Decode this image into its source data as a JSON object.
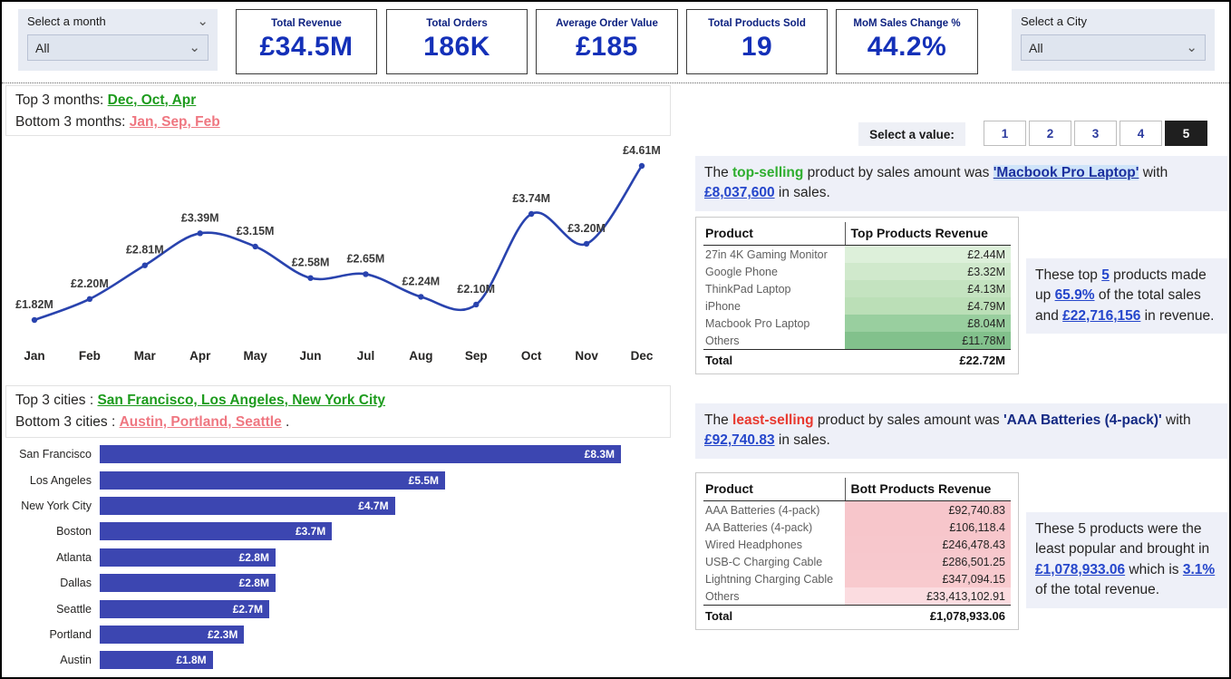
{
  "slicers": {
    "month": {
      "title": "Select a month",
      "value": "All"
    },
    "city": {
      "title": "Select a City",
      "value": "All"
    }
  },
  "kpis": [
    {
      "label": "Total Revenue",
      "value": "£34.5M"
    },
    {
      "label": "Total Orders",
      "value": "186K"
    },
    {
      "label": "Average Order Value",
      "value": "£185"
    },
    {
      "label": "Total Products Sold",
      "value": "19"
    },
    {
      "label": "MoM Sales Change %",
      "value": "44.2%"
    }
  ],
  "left": {
    "months": {
      "top_label": "Top 3 months: ",
      "top_value": "Dec, Oct, Apr",
      "bottom_label": "Bottom 3 months: ",
      "bottom_value": "Jan, Sep, Feb"
    },
    "cities": {
      "top_label": "Top 3 cities : ",
      "top_value": "San Francisco,  Los Angeles,  New York City",
      "bottom_label": "Bottom 3 cities : ",
      "bottom_value": "Austin,  Portland,  Seattle",
      "bottom_suffix": " ."
    }
  },
  "selector": {
    "label": "Select a value:",
    "options": [
      "1",
      "2",
      "3",
      "4",
      "5"
    ],
    "selected_index": 4
  },
  "top_section": {
    "sentence": {
      "t1": "The ",
      "highlight": "top-selling",
      "t2": " product by sales amount was ",
      "product": "'Macbook Pro Laptop'",
      "t3": " with ",
      "amount": "£8,037,600",
      "t4": " in sales."
    },
    "table": {
      "header_product": "Product",
      "header_revenue": "Top Products Revenue",
      "rows": [
        {
          "product": "27in 4K Gaming Monitor",
          "revenue": "£2.44M",
          "bg": "#ddf0da"
        },
        {
          "product": "Google Phone",
          "revenue": "£3.32M",
          "bg": "#d0e9cc"
        },
        {
          "product": "ThinkPad Laptop",
          "revenue": "£4.13M",
          "bg": "#c4e3c0"
        },
        {
          "product": "iPhone",
          "revenue": "£4.79M",
          "bg": "#bbdfb7"
        },
        {
          "product": "Macbook Pro Laptop",
          "revenue": "£8.04M",
          "bg": "#99cf9f"
        },
        {
          "product": "Others",
          "revenue": "£11.78M",
          "bg": "#82c18c"
        }
      ],
      "total_label": "Total",
      "total_value": "£22.72M"
    },
    "note": {
      "t1": "These top ",
      "n": "5",
      "t2": " products made up ",
      "pct": "65.9%",
      "t3": " of the total sales and ",
      "amt": "£22,716,156",
      "t4": " in revenue."
    }
  },
  "bottom_section": {
    "sentence": {
      "t1": "The ",
      "highlight": "least-selling",
      "t2": " product by sales amount was ",
      "product": "'AAA Batteries (4-pack)'",
      "t3": " with ",
      "amount": "£92,740.83",
      "t4": " in sales."
    },
    "table": {
      "header_product": "Product",
      "header_revenue": "Bott Products Revenue",
      "rows": [
        {
          "product": "AAA Batteries (4-pack)",
          "revenue": "£92,740.83",
          "bg": "#f7c6cb"
        },
        {
          "product": "AA Batteries (4-pack)",
          "revenue": "£106,118.4",
          "bg": "#f7c6cb"
        },
        {
          "product": "Wired Headphones",
          "revenue": "£246,478.43",
          "bg": "#f7c7cc"
        },
        {
          "product": "USB-C Charging Cable",
          "revenue": "£286,501.25",
          "bg": "#f7c8cd"
        },
        {
          "product": "Lightning Charging Cable",
          "revenue": "£347,094.15",
          "bg": "#f8cace"
        },
        {
          "product": "Others",
          "revenue": "£33,413,102.91",
          "bg": "#fbdce0"
        }
      ],
      "total_label": "Total",
      "total_value": "£1,078,933.06"
    },
    "note": {
      "t1": "These 5 products were the least popular and brought in ",
      "amt": "£1,078,933.06",
      "t2": " which is ",
      "pct": "3.1%",
      "t3": " of the total revenue."
    }
  },
  "chart_data": [
    {
      "type": "line",
      "title": "Monthly revenue by month",
      "categories": [
        "Jan",
        "Feb",
        "Mar",
        "Apr",
        "May",
        "Jun",
        "Jul",
        "Aug",
        "Sep",
        "Oct",
        "Nov",
        "Dec"
      ],
      "values": [
        1.82,
        2.2,
        2.81,
        3.39,
        3.15,
        2.58,
        2.65,
        2.24,
        2.1,
        3.74,
        3.2,
        4.61
      ],
      "labels": [
        "£1.82M",
        "£2.20M",
        "£2.81M",
        "£3.39M",
        "£3.15M",
        "£2.58M",
        "£2.65M",
        "£2.24M",
        "£2.10M",
        "£3.74M",
        "£3.20M",
        "£4.61M"
      ],
      "unit": "GBP millions",
      "ylim": [
        0,
        5
      ],
      "grid": false,
      "line_color": "#2943ae"
    },
    {
      "type": "bar",
      "orientation": "horizontal",
      "title": "Revenue by city",
      "categories": [
        "San Francisco",
        "Los Angeles",
        "New York City",
        "Boston",
        "Atlanta",
        "Dallas",
        "Seattle",
        "Portland",
        "Austin"
      ],
      "values": [
        8.3,
        5.5,
        4.7,
        3.7,
        2.8,
        2.8,
        2.7,
        2.3,
        1.8
      ],
      "labels": [
        "£8.3M",
        "£5.5M",
        "£4.7M",
        "£3.7M",
        "£2.8M",
        "£2.8M",
        "£2.7M",
        "£2.3M",
        "£1.8M"
      ],
      "unit": "GBP millions",
      "xlim": [
        0,
        9
      ],
      "grid": false,
      "bar_color": "#3c46b1"
    }
  ],
  "colors": {
    "kpi_title": "#0d2180",
    "kpi_value": "#1430b8",
    "green_text": "#1d9b1d",
    "red_text": "#ef7680",
    "link_blue": "#2546cb",
    "selected_button_bg": "#1f1f1f"
  }
}
